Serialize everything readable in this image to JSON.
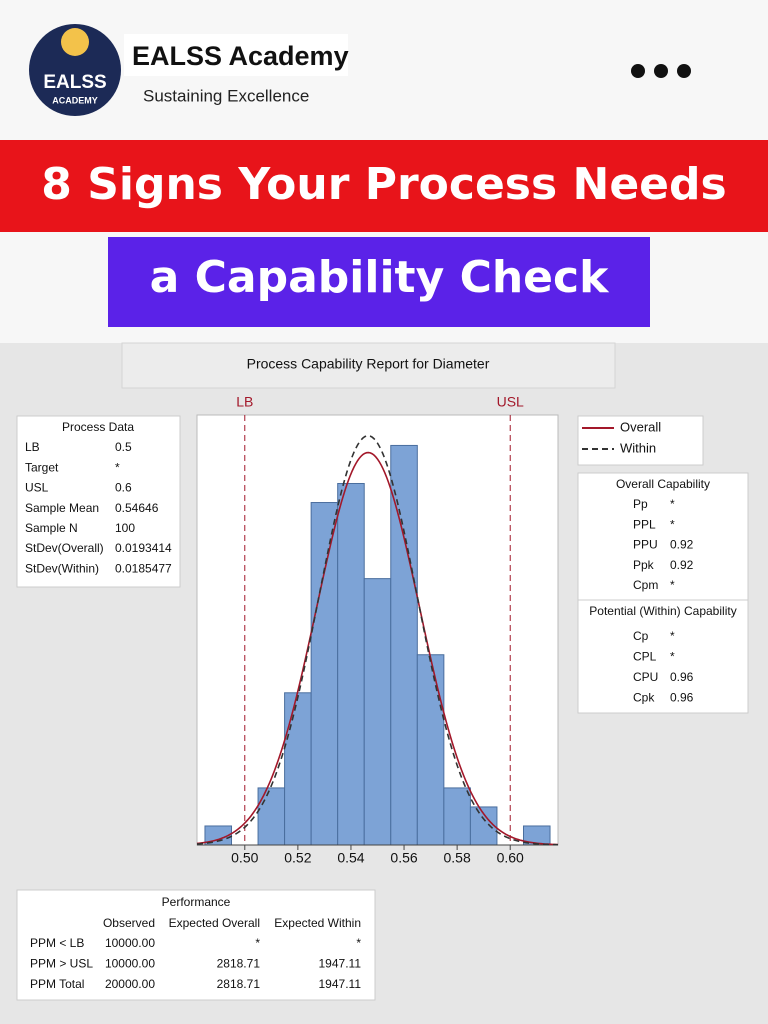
{
  "header": {
    "brand": "EALSS Academy",
    "tagline": "Sustaining Excellence",
    "logo_top": "EALSS",
    "logo_bottom": "ACADEMY"
  },
  "headline": {
    "line1": "8 Signs Your Process Needs",
    "line2": "a Capability Check"
  },
  "chart_data": {
    "type": "histogram",
    "title": "Process Capability Report for Diameter",
    "bins": [
      0.485,
      0.495,
      0.505,
      0.515,
      0.525,
      0.535,
      0.545,
      0.555,
      0.565,
      0.575,
      0.585,
      0.595,
      0.605,
      0.615
    ],
    "counts": [
      1,
      0,
      3,
      8,
      18,
      19,
      14,
      21,
      10,
      3,
      2,
      0,
      1
    ],
    "color": "#7da3d6",
    "xlim": [
      0.482,
      0.618
    ],
    "xticks": [
      {
        "value": 0.5,
        "label": "0.50"
      },
      {
        "value": 0.52,
        "label": "0.52"
      },
      {
        "value": 0.54,
        "label": "0.54"
      },
      {
        "value": 0.56,
        "label": "0.56"
      },
      {
        "value": 0.58,
        "label": "0.58"
      },
      {
        "value": 0.6,
        "label": "0.60"
      }
    ],
    "ylim": [
      0,
      22.6
    ],
    "spec_lines": [
      {
        "label": "LB",
        "value": 0.5
      },
      {
        "label": "USL",
        "value": 0.6
      }
    ],
    "spec_color": "#a3182a",
    "curves": [
      {
        "name": "Overall",
        "color": "#a3182a",
        "style": "solid"
      },
      {
        "name": "Within",
        "color": "#333333",
        "style": "dashed"
      }
    ]
  },
  "process_data": {
    "title": "Process Data",
    "rows": [
      [
        "LB",
        0.5
      ],
      [
        "Target",
        "*"
      ],
      [
        "USL",
        0.6
      ],
      [
        "Sample Mean",
        0.54646
      ],
      [
        "Sample N",
        100
      ],
      [
        "StDev(Overall)",
        0.0193414
      ],
      [
        "StDev(Within)",
        0.0185477
      ]
    ]
  },
  "overall_capability": {
    "title": "Overall Capability",
    "rows": [
      [
        "Pp",
        "*"
      ],
      [
        "PPL",
        "*"
      ],
      [
        "PPU",
        0.92
      ],
      [
        "Ppk",
        0.92
      ],
      [
        "Cpm",
        "*"
      ]
    ]
  },
  "potential_capability": {
    "title": "Potential (Within) Capability",
    "rows": [
      [
        "Cp",
        "*"
      ],
      [
        "CPL",
        "*"
      ],
      [
        "CPU",
        0.96
      ],
      [
        "Cpk",
        0.96
      ]
    ]
  },
  "performance": {
    "title": "Performance",
    "columns": [
      "Observed",
      "Expected Overall",
      "Expected Within"
    ],
    "rows": [
      [
        "PPM < LB",
        "10000.00",
        "*",
        "*"
      ],
      [
        "PPM > USL",
        "10000.00",
        "2818.71",
        "1947.11"
      ],
      [
        "PPM Total",
        "20000.00",
        "2818.71",
        "1947.11"
      ]
    ]
  }
}
